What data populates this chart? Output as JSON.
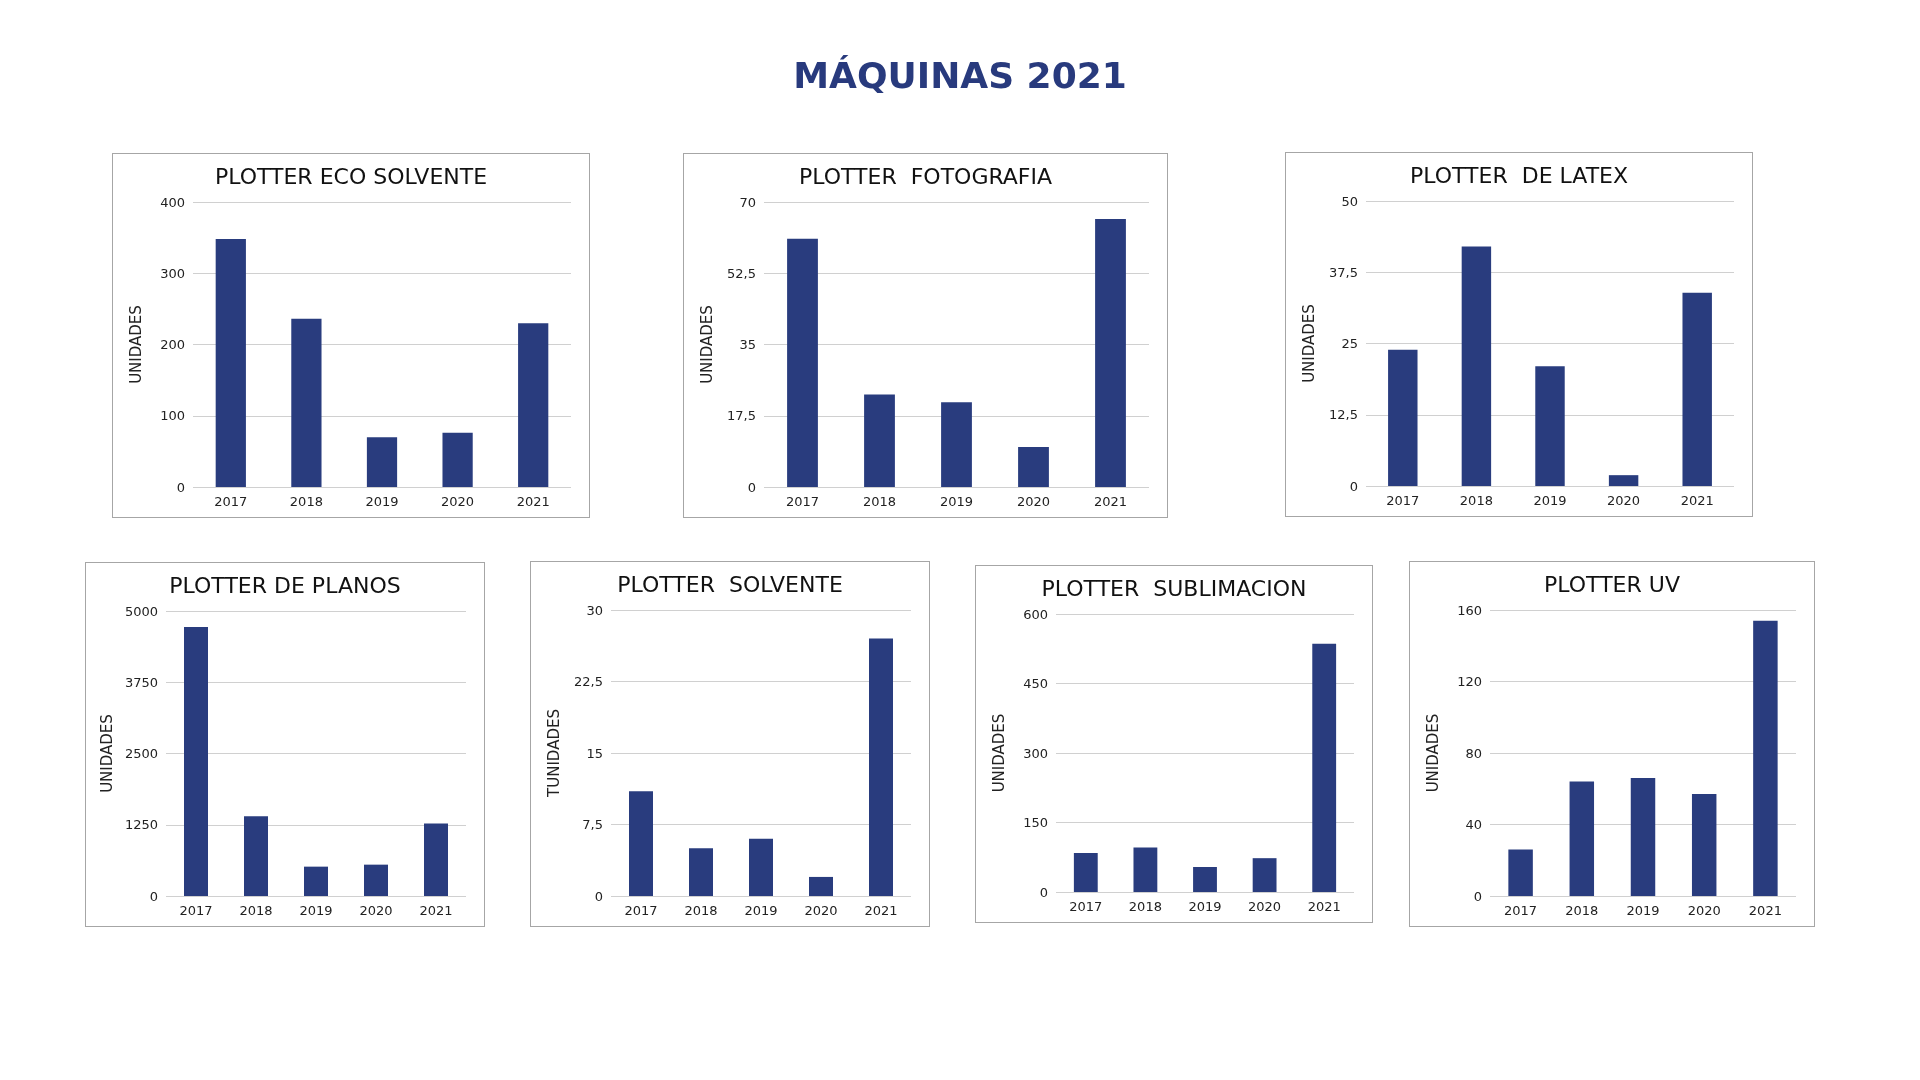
{
  "chart_data": [
    {
      "type": "other",
      "title": "MÁQUINAS 2021"
    },
    {
      "type": "bar",
      "title": "PLOTTER ECO SOLVENTE",
      "ylabel": "UNIDADES",
      "categories": [
        "2017",
        "2018",
        "2019",
        "2020",
        "2021"
      ],
      "values": [
        348,
        236,
        70,
        76,
        230
      ],
      "color": "#293c7e",
      "ylim": [
        0,
        400
      ],
      "yticks": [
        0,
        100,
        200,
        300,
        400
      ],
      "grid": "y"
    },
    {
      "type": "bar",
      "title": "PLOTTER  FOTOGRAFIA",
      "ylabel": "UNIDADES",
      "categories": [
        "2017",
        "2018",
        "2019",
        "2020",
        "2021"
      ],
      "values": [
        61,
        22.7,
        20.8,
        9.8,
        65.8
      ],
      "color": "#293c7e",
      "ylim": [
        0,
        70
      ],
      "yticks": [
        0,
        {
          "value": 17.5,
          "label": "17,5"
        },
        35,
        {
          "value": 52.5,
          "label": "52,5"
        },
        70
      ],
      "grid": "y"
    },
    {
      "type": "bar",
      "title": "PLOTTER  DE LATEX",
      "ylabel": "UNIDADES",
      "categories": [
        "2017",
        "2018",
        "2019",
        "2020",
        "2021"
      ],
      "values": [
        23.9,
        42,
        21,
        1.9,
        33.9
      ],
      "color": "#293c7e",
      "ylim": [
        0,
        50
      ],
      "yticks": [
        0,
        {
          "value": 12.5,
          "label": "12,5"
        },
        25,
        {
          "value": 37.5,
          "label": "37,5"
        },
        50
      ],
      "grid": "y"
    },
    {
      "type": "bar",
      "title": "PLOTTER DE PLANOS",
      "ylabel": "UNIDADES",
      "categories": [
        "2017",
        "2018",
        "2019",
        "2020",
        "2021"
      ],
      "values": [
        4720,
        1400,
        515,
        550,
        1270
      ],
      "color": "#293c7e",
      "ylim": [
        0,
        5000
      ],
      "yticks": [
        0,
        1250,
        2500,
        3750,
        5000
      ],
      "grid": "y"
    },
    {
      "type": "bar",
      "title": "PLOTTER  SOLVENTE",
      "ylabel": "TUNIDADES",
      "categories": [
        "2017",
        "2018",
        "2019",
        "2020",
        "2021"
      ],
      "values": [
        11,
        5,
        6,
        2,
        27
      ],
      "color": "#293c7e",
      "ylim": [
        0,
        30
      ],
      "yticks": [
        0,
        {
          "value": 7.5,
          "label": "7,5"
        },
        15,
        {
          "value": 22.5,
          "label": "22,5"
        },
        30
      ],
      "grid": "y"
    },
    {
      "type": "bar",
      "title": "PLOTTER  SUBLIMACION",
      "ylabel": "UNIDADES",
      "categories": [
        "2017",
        "2018",
        "2019",
        "2020",
        "2021"
      ],
      "values": [
        84,
        96,
        54,
        73,
        536
      ],
      "color": "#293c7e",
      "ylim": [
        0,
        600
      ],
      "yticks": [
        0,
        150,
        300,
        450,
        600
      ],
      "grid": "y"
    },
    {
      "type": "bar",
      "title": "PLOTTER UV",
      "ylabel": "UNIDADES",
      "categories": [
        "2017",
        "2018",
        "2019",
        "2020",
        "2021"
      ],
      "values": [
        26,
        64,
        66,
        57,
        154
      ],
      "color": "#293c7e",
      "ylim": [
        0,
        160
      ],
      "yticks": [
        0,
        40,
        80,
        120,
        160
      ],
      "grid": "y"
    }
  ]
}
